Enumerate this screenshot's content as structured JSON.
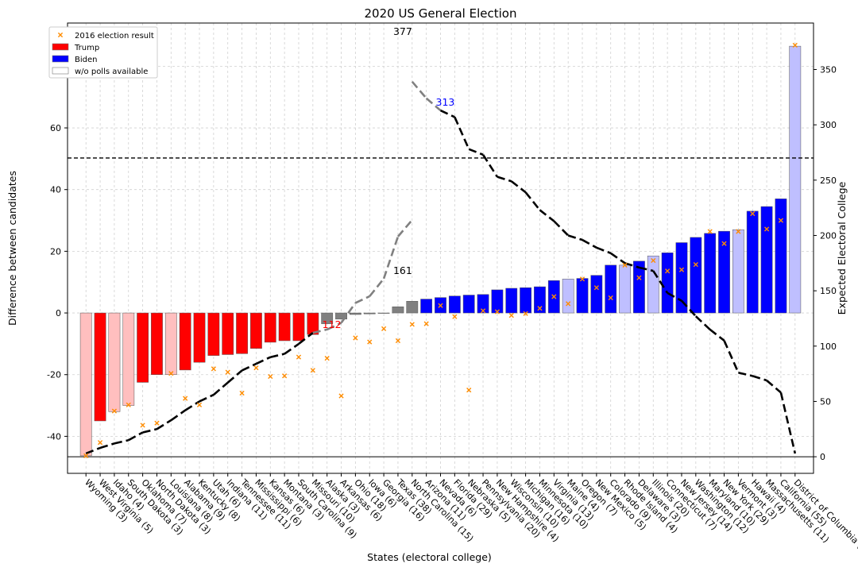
{
  "chart_data": {
    "type": "bar",
    "title": "2020 US General Election",
    "xlabel": "States (electoral college)",
    "ylabel": "Difference between candidates",
    "y2label": "Expected Electoral College",
    "ylim": [
      -52,
      94
    ],
    "y2lim": [
      -15,
      392
    ],
    "yticks": [
      -40,
      -20,
      0,
      20,
      40,
      60,
      80
    ],
    "y2ticks": [
      0,
      50,
      100,
      150,
      200,
      250,
      300,
      350
    ],
    "grid": true,
    "legend_position": "top-left",
    "legend": {
      "result_2016": "2016 election result",
      "trump": "Trump",
      "biden": "Biden",
      "no_polls": "w/o polls available"
    },
    "colors": {
      "trump": "#ff0000",
      "trump_light": "#ffbfbf",
      "biden": "#0000ff",
      "biden_light": "#bfbfff",
      "tossup": "#808080",
      "marker_2016": "#ff8c00",
      "ec_dashed": "#000000",
      "ec_grey": "#808080"
    },
    "reference_lines": {
      "y2_majority": 270,
      "y2_zero": 0
    },
    "annotations": [
      {
        "text": "377",
        "x_index": 22,
        "y2": 377,
        "color": "#000000"
      },
      {
        "text": "313",
        "x_index": 25,
        "y2": 313,
        "color": "#0000ff"
      },
      {
        "text": "161",
        "x_index": 22,
        "y2": 161,
        "color": "#000000"
      },
      {
        "text": "112",
        "x_index": 17,
        "y2": 112,
        "color": "#ff0000"
      }
    ],
    "categories": [
      "Wyoming (3)",
      "West Virginia (5)",
      "Idaho (4)",
      "South Dakota (3)",
      "Oklahoma (7)",
      "North Dakota (3)",
      "Louisiana (8)",
      "Alabama (9)",
      "Kentucky (8)",
      "Utah (6)",
      "Indiana (11)",
      "Tennessee (11)",
      "Mississippi (6)",
      "Kansas (6)",
      "Montana (3)",
      "South Carolina (9)",
      "Missouri (10)",
      "Alaska (3)",
      "Arkansas (6)",
      "Ohio (18)",
      "Iowa (6)",
      "Georgia (16)",
      "Texas (38)",
      "North Carolina (15)",
      "Arizona (11)",
      "Nevada (6)",
      "Florida (29)",
      "Nebraska (5)",
      "Pennsylvania (20)",
      "New Hampshire (4)",
      "Wisconsin (10)",
      "Michigan (16)",
      "Minnesota (10)",
      "Virginia (13)",
      "Maine (4)",
      "Oregon (7)",
      "New Mexico (5)",
      "Colorado (9)",
      "Rhode Island (4)",
      "Delaware (3)",
      "Illinois (20)",
      "Connecticut (7)",
      "New Jersey (14)",
      "Washington (12)",
      "Maryland (10)",
      "New York (29)",
      "Vermont (3)",
      "Hawaii (4)",
      "Massachusetts (11)",
      "California (55)",
      "District of Columbia (3)"
    ],
    "values": [
      -46.3,
      -35,
      -32,
      -30,
      -22.5,
      -20,
      -20,
      -18.5,
      -16,
      -13.8,
      -13.5,
      -13.2,
      -11.5,
      -9.5,
      -9,
      -9,
      -7,
      -3.5,
      -2,
      -0.5,
      -0.3,
      0,
      2,
      3.8,
      4.5,
      5,
      5.5,
      5.8,
      6,
      7.5,
      8,
      8.2,
      8.5,
      10.5,
      11,
      11.2,
      12.2,
      15.5,
      15.5,
      16.8,
      18.5,
      19.5,
      22.8,
      24.5,
      25.8,
      26.5,
      27,
      33,
      34.5,
      37,
      86.5
    ],
    "leaning": [
      "trump",
      "trump",
      "trump",
      "trump",
      "trump",
      "trump",
      "trump",
      "trump",
      "trump",
      "trump",
      "trump",
      "trump",
      "trump",
      "trump",
      "trump",
      "trump",
      "trump",
      "tossup",
      "tossup",
      "tossup",
      "tossup",
      "tossup",
      "tossup",
      "tossup",
      "biden",
      "biden",
      "biden",
      "biden",
      "biden",
      "biden",
      "biden",
      "biden",
      "biden",
      "biden",
      "biden",
      "biden",
      "biden",
      "biden",
      "biden",
      "biden",
      "biden",
      "biden",
      "biden",
      "biden",
      "biden",
      "biden",
      "biden",
      "biden",
      "biden",
      "biden",
      "biden"
    ],
    "no_polls": [
      true,
      false,
      true,
      true,
      false,
      false,
      true,
      false,
      false,
      false,
      false,
      false,
      false,
      false,
      false,
      false,
      false,
      false,
      false,
      false,
      false,
      false,
      false,
      false,
      false,
      false,
      false,
      false,
      false,
      false,
      false,
      false,
      false,
      false,
      true,
      false,
      false,
      false,
      true,
      false,
      true,
      false,
      false,
      false,
      false,
      false,
      true,
      false,
      false,
      false,
      true
    ],
    "result_2016": [
      -46.3,
      -42,
      -31.8,
      -29.8,
      -36.4,
      -35.7,
      -19.6,
      -27.7,
      -29.8,
      -18.1,
      -19.2,
      -26,
      -17.8,
      -20.6,
      -20.4,
      -14.3,
      -18.6,
      -14.7,
      -26.9,
      -8.1,
      -9.4,
      -5.1,
      -9,
      -3.7,
      -3.5,
      2.4,
      -1.2,
      -25,
      0.7,
      0.4,
      -0.8,
      -0.2,
      1.5,
      5.3,
      3,
      11,
      8.2,
      4.9,
      15.5,
      11.4,
      17,
      13.6,
      14,
      15.7,
      26.4,
      22.5,
      26.4,
      32.2,
      27.2,
      30,
      86.8
    ],
    "ec_trump_cumulative": [
      3,
      8,
      12,
      15,
      22,
      25,
      33,
      42,
      50,
      56,
      67,
      78,
      84,
      90,
      93,
      102,
      112,
      115,
      121,
      139,
      145,
      161,
      199,
      214,
      225,
      231,
      260,
      265,
      285,
      289,
      299,
      315,
      325,
      338,
      342,
      349,
      354,
      363,
      367,
      370,
      390,
      397,
      411,
      423,
      433,
      462,
      465,
      469,
      480,
      535,
      538
    ],
    "ec_biden_cumulative": [
      538,
      535,
      530,
      526,
      523,
      516,
      513,
      505,
      496,
      488,
      482,
      471,
      460,
      454,
      448,
      445,
      436,
      426,
      423,
      417,
      399,
      393,
      377,
      339,
      324,
      313,
      307,
      278,
      273,
      253,
      249,
      239,
      223,
      213,
      200,
      196,
      189,
      184,
      175,
      171,
      168,
      148,
      141,
      127,
      115,
      105,
      76,
      73,
      69,
      58,
      3
    ]
  }
}
